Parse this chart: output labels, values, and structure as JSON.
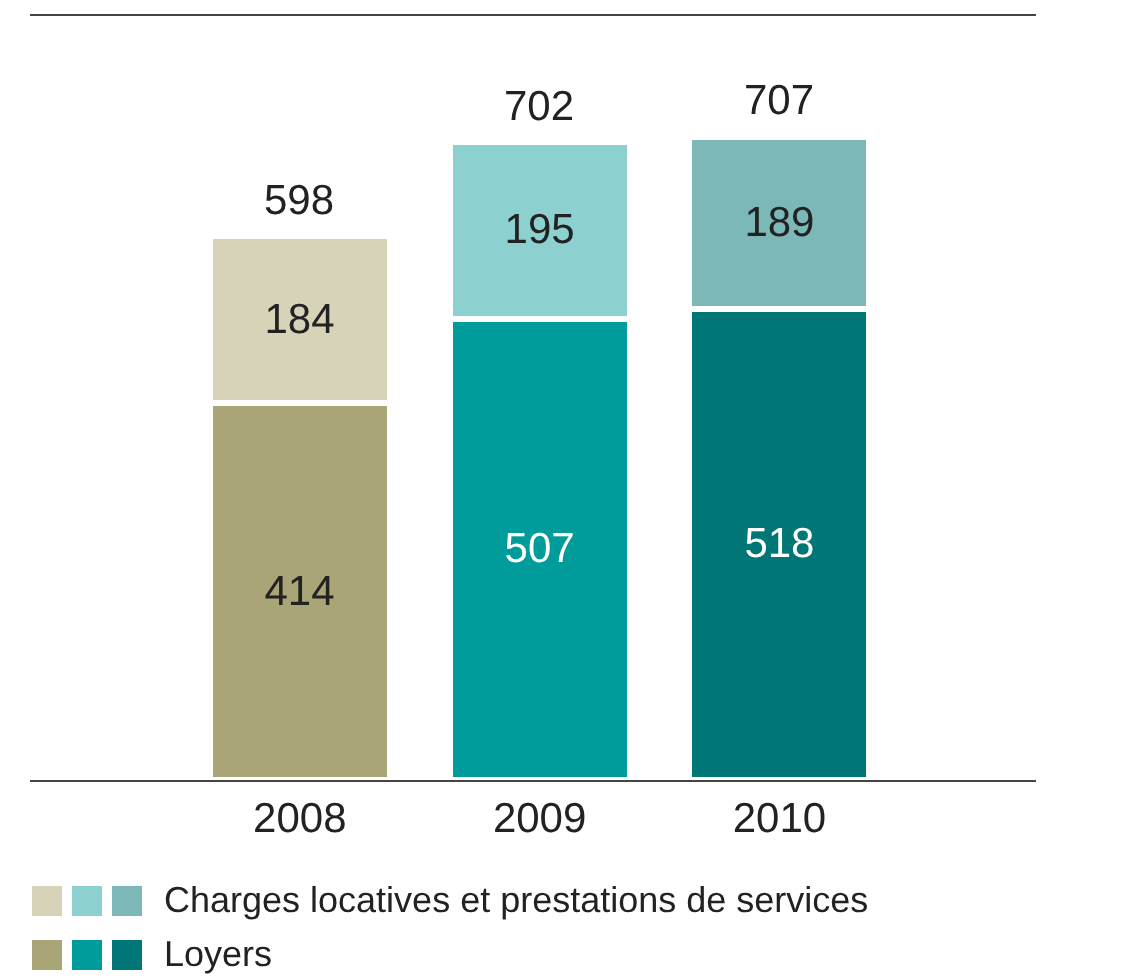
{
  "chart_data": {
    "type": "bar",
    "stacked": true,
    "categories": [
      "2008",
      "2009",
      "2010"
    ],
    "series": [
      {
        "name": "Loyers",
        "colors": [
          "#a9a577",
          "#009b9b",
          "#007676"
        ],
        "values": [
          414,
          507,
          518
        ]
      },
      {
        "name": "Charges locatives et prestations de services",
        "colors": [
          "#d7d3b8",
          "#8dd0d0",
          "#7cb8b8"
        ],
        "values": [
          184,
          195,
          189
        ]
      }
    ],
    "data_labels": true,
    "totals": [
      "598",
      "702",
      "707"
    ],
    "ylim": [
      0,
      840
    ],
    "legend": "bottom"
  }
}
